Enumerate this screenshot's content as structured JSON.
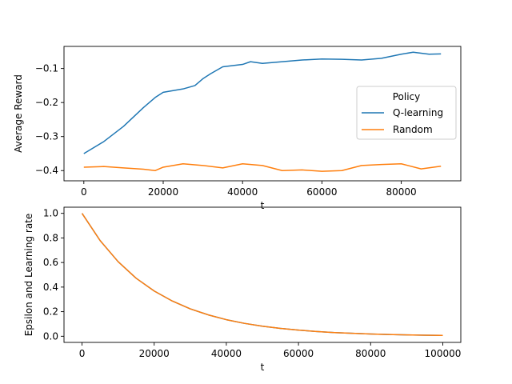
{
  "chart_data": [
    {
      "type": "line",
      "xlabel": "t",
      "ylabel": "Average Reward",
      "xlim": [
        -5000,
        95000
      ],
      "ylim": [
        -0.43,
        -0.035
      ],
      "xticks": [
        0,
        20000,
        40000,
        60000,
        80000
      ],
      "yticks": [
        -0.1,
        -0.2,
        -0.3,
        -0.4
      ],
      "ytick_labels": [
        "−0.1",
        "−0.2",
        "−0.3",
        "−0.4"
      ],
      "grid": false,
      "legend": {
        "title": "Policy",
        "placement": "center-right"
      },
      "series": [
        {
          "name": "Q-learning",
          "color": "#1f77b4",
          "x": [
            0,
            5000,
            10000,
            15000,
            18000,
            20000,
            25000,
            28000,
            30000,
            32000,
            35000,
            40000,
            42000,
            45000,
            50000,
            55000,
            60000,
            65000,
            70000,
            75000,
            80000,
            83000,
            87000,
            90000
          ],
          "y": [
            -0.35,
            -0.315,
            -0.27,
            -0.215,
            -0.185,
            -0.17,
            -0.16,
            -0.15,
            -0.13,
            -0.115,
            -0.095,
            -0.088,
            -0.08,
            -0.085,
            -0.08,
            -0.075,
            -0.072,
            -0.073,
            -0.075,
            -0.07,
            -0.058,
            -0.052,
            -0.058,
            -0.057
          ]
        },
        {
          "name": "Random",
          "color": "#ff7f0e",
          "x": [
            0,
            5000,
            10000,
            15000,
            18000,
            20000,
            25000,
            30000,
            35000,
            40000,
            45000,
            50000,
            55000,
            60000,
            65000,
            70000,
            75000,
            80000,
            85000,
            90000
          ],
          "y": [
            -0.39,
            -0.388,
            -0.392,
            -0.396,
            -0.4,
            -0.39,
            -0.38,
            -0.385,
            -0.392,
            -0.38,
            -0.385,
            -0.4,
            -0.398,
            -0.402,
            -0.4,
            -0.385,
            -0.382,
            -0.38,
            -0.395,
            -0.387
          ]
        }
      ]
    },
    {
      "type": "line",
      "xlabel": "t",
      "ylabel": "Epsilon and Learning rate",
      "xlim": [
        -5000,
        105000
      ],
      "ylim": [
        -0.05,
        1.05
      ],
      "xticks": [
        0,
        20000,
        40000,
        60000,
        80000,
        100000
      ],
      "yticks": [
        0.0,
        0.2,
        0.4,
        0.6,
        0.8,
        1.0
      ],
      "ytick_labels": [
        "0.0",
        "0.2",
        "0.4",
        "0.6",
        "0.8",
        "1.0"
      ],
      "grid": false,
      "series": [
        {
          "color": "#1f77b4",
          "x": [
            0,
            5000,
            10000,
            15000,
            20000,
            25000,
            30000,
            35000,
            40000,
            45000,
            50000,
            55000,
            60000,
            65000,
            70000,
            75000,
            80000,
            85000,
            90000,
            95000,
            100000
          ],
          "y": [
            1.0,
            0.779,
            0.607,
            0.472,
            0.368,
            0.287,
            0.223,
            0.174,
            0.135,
            0.105,
            0.082,
            0.064,
            0.05,
            0.039,
            0.03,
            0.024,
            0.018,
            0.014,
            0.011,
            0.009,
            0.007
          ]
        },
        {
          "color": "#ff7f0e",
          "x": [
            0,
            5000,
            10000,
            15000,
            20000,
            25000,
            30000,
            35000,
            40000,
            45000,
            50000,
            55000,
            60000,
            65000,
            70000,
            75000,
            80000,
            85000,
            90000,
            95000,
            100000
          ],
          "y": [
            1.0,
            0.779,
            0.607,
            0.472,
            0.368,
            0.287,
            0.223,
            0.174,
            0.135,
            0.105,
            0.082,
            0.064,
            0.05,
            0.039,
            0.03,
            0.024,
            0.018,
            0.014,
            0.011,
            0.009,
            0.007
          ]
        }
      ]
    }
  ]
}
